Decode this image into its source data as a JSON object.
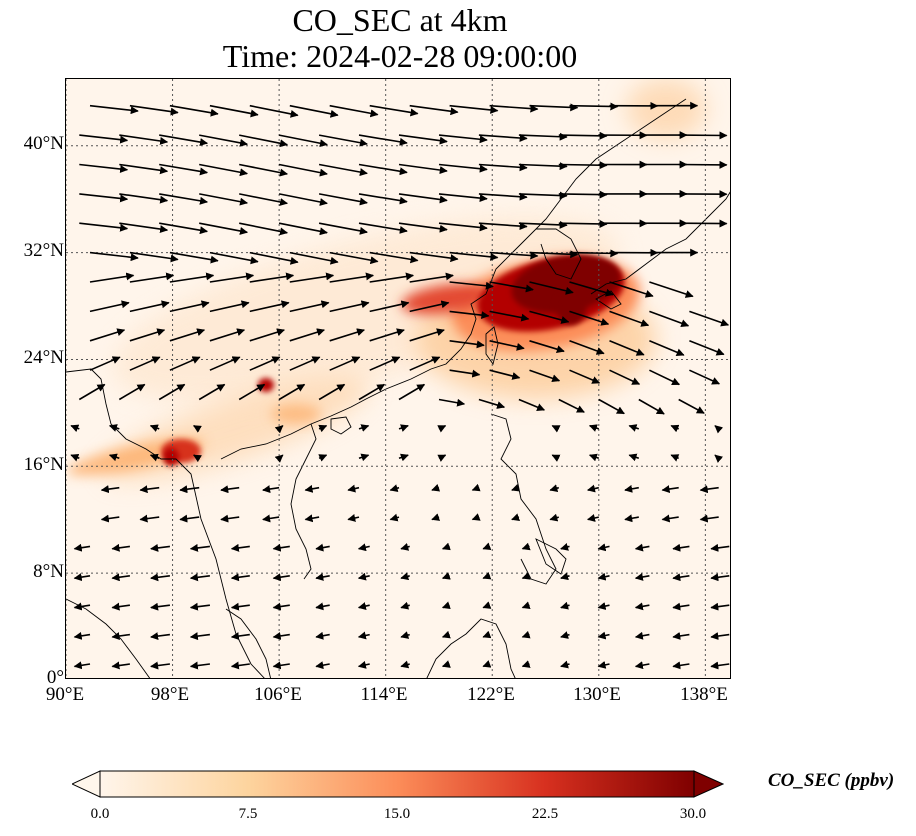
{
  "title": {
    "line1": "CO_SEC at 4km",
    "line2": "Time: 2024-02-28 09:00:00"
  },
  "map": {
    "lon_range": [
      90,
      140
    ],
    "lat_range": [
      0,
      45
    ],
    "lat_ticks": [
      {
        "value": 40,
        "label": "40°N"
      },
      {
        "value": 32,
        "label": "32°N"
      },
      {
        "value": 24,
        "label": "24°N"
      },
      {
        "value": 16,
        "label": "16°N"
      },
      {
        "value": 8,
        "label": "8°N"
      },
      {
        "value": 0,
        "label": "0°"
      }
    ],
    "lon_ticks": [
      {
        "value": 90,
        "label": "90°E"
      },
      {
        "value": 98,
        "label": "98°E"
      },
      {
        "value": 106,
        "label": "106°E"
      },
      {
        "value": 114,
        "label": "114°E"
      },
      {
        "value": 122,
        "label": "122°E"
      },
      {
        "value": 130,
        "label": "130°E"
      },
      {
        "value": 138,
        "label": "138°E"
      }
    ],
    "gridlines": "dotted",
    "wind_vectors": "black arrows, predominantly westerly north of ~20°N, easterly trades south of ~16°N",
    "plume_hotspots": [
      {
        "lon": 126,
        "lat": 29,
        "level": "max"
      },
      {
        "lon": 119,
        "lat": 29,
        "level": "high"
      },
      {
        "lon": 100,
        "lat": 17,
        "level": "high"
      },
      {
        "lon": 105,
        "lat": 22,
        "level": "high"
      }
    ]
  },
  "colorbar": {
    "label": "CO_SEC (ppbv)",
    "ticks": [
      "0.0",
      "7.5",
      "15.0",
      "22.5",
      "30.0"
    ],
    "min": 0,
    "max": 30,
    "extend": "both",
    "colormap": [
      "#fff5eb",
      "#fdd49e",
      "#fc8d59",
      "#d7301f",
      "#7f0000"
    ]
  }
}
